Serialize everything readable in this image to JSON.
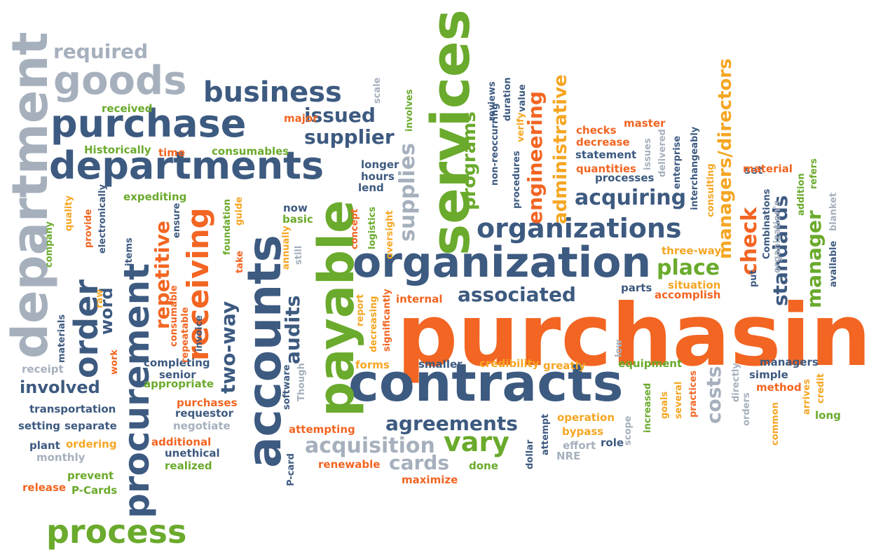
{
  "palette": {
    "navy": "#3d5a80",
    "orange": "#f26522",
    "green": "#6aaa2c",
    "gold": "#f5a623",
    "gray": "#a6b0bd"
  },
  "words": [
    {
      "text": "purchasing",
      "color": "orange",
      "size": 122,
      "dir": "h"
    },
    {
      "text": "contracts",
      "color": "navy",
      "size": 74,
      "dir": "h"
    },
    {
      "text": "organization",
      "color": "navy",
      "size": 60,
      "dir": "h"
    },
    {
      "text": "services",
      "color": "green",
      "size": 76,
      "dir": "v"
    },
    {
      "text": "payable",
      "color": "green",
      "size": 70,
      "dir": "v"
    },
    {
      "text": "accounts",
      "color": "navy",
      "size": 66,
      "dir": "v"
    },
    {
      "text": "department",
      "color": "gray",
      "size": 70,
      "dir": "v"
    },
    {
      "text": "procurement",
      "color": "navy",
      "size": 50,
      "dir": "v"
    },
    {
      "text": "departments",
      "color": "navy",
      "size": 54,
      "dir": "h"
    },
    {
      "text": "purchase",
      "color": "navy",
      "size": 54,
      "dir": "h"
    },
    {
      "text": "goods",
      "color": "gray",
      "size": 56,
      "dir": "h"
    },
    {
      "text": "business",
      "color": "navy",
      "size": 40,
      "dir": "h"
    },
    {
      "text": "process",
      "color": "green",
      "size": 46,
      "dir": "h"
    },
    {
      "text": "organizations",
      "color": "navy",
      "size": 38,
      "dir": "h"
    },
    {
      "text": "required",
      "color": "gray",
      "size": 28,
      "dir": "h"
    },
    {
      "text": "issued",
      "color": "navy",
      "size": 28,
      "dir": "h"
    },
    {
      "text": "supplier",
      "color": "navy",
      "size": 28,
      "dir": "h"
    },
    {
      "text": "order",
      "color": "navy",
      "size": 46,
      "dir": "v"
    },
    {
      "text": "receiving",
      "color": "orange",
      "size": 42,
      "dir": "v"
    },
    {
      "text": "repetitive",
      "color": "orange",
      "size": 28,
      "dir": "v"
    },
    {
      "text": "two-way",
      "color": "navy",
      "size": 28,
      "dir": "v"
    },
    {
      "text": "audits",
      "color": "navy",
      "size": 28,
      "dir": "v"
    },
    {
      "text": "supplies",
      "color": "gray",
      "size": 30,
      "dir": "v"
    },
    {
      "text": "programs",
      "color": "green",
      "size": 26,
      "dir": "v"
    },
    {
      "text": "engineering",
      "color": "orange",
      "size": 28,
      "dir": "v"
    },
    {
      "text": "administrative",
      "color": "gold",
      "size": 26,
      "dir": "v"
    },
    {
      "text": "managers/directors",
      "color": "gold",
      "size": 26,
      "dir": "v"
    },
    {
      "text": "check",
      "color": "orange",
      "size": 30,
      "dir": "v"
    },
    {
      "text": "standards",
      "color": "navy",
      "size": 28,
      "dir": "v"
    },
    {
      "text": "manager",
      "color": "green",
      "size": 28,
      "dir": "v"
    },
    {
      "text": "costs",
      "color": "gray",
      "size": 28,
      "dir": "v"
    },
    {
      "text": "word",
      "color": "navy",
      "size": 24,
      "dir": "v"
    },
    {
      "text": "acquiring",
      "color": "navy",
      "size": 30,
      "dir": "h"
    },
    {
      "text": "place",
      "color": "green",
      "size": 30,
      "dir": "h"
    },
    {
      "text": "associated",
      "color": "navy",
      "size": 28,
      "dir": "h"
    },
    {
      "text": "agreements",
      "color": "navy",
      "size": 28,
      "dir": "h"
    },
    {
      "text": "acquisition",
      "color": "gray",
      "size": 30,
      "dir": "h"
    },
    {
      "text": "vary",
      "color": "green",
      "size": 38,
      "dir": "h"
    },
    {
      "text": "cards",
      "color": "gray",
      "size": 28,
      "dir": "h"
    },
    {
      "text": "involved",
      "color": "navy",
      "size": 24,
      "dir": "h"
    },
    {
      "text": "received",
      "color": "green",
      "size": 15,
      "dir": "h"
    },
    {
      "text": "Historically",
      "color": "green",
      "size": 15,
      "dir": "h"
    },
    {
      "text": "time",
      "color": "orange",
      "size": 15,
      "dir": "h"
    },
    {
      "text": "consumables",
      "color": "green",
      "size": 15,
      "dir": "h"
    },
    {
      "text": "major",
      "color": "orange",
      "size": 15,
      "dir": "h"
    },
    {
      "text": "expediting",
      "color": "green",
      "size": 15,
      "dir": "h"
    },
    {
      "text": "longer",
      "color": "navy",
      "size": 15,
      "dir": "h"
    },
    {
      "text": "hours",
      "color": "navy",
      "size": 15,
      "dir": "h"
    },
    {
      "text": "lend",
      "color": "navy",
      "size": 15,
      "dir": "h"
    },
    {
      "text": "now",
      "color": "navy",
      "size": 15,
      "dir": "h"
    },
    {
      "text": "basic",
      "color": "green",
      "size": 15,
      "dir": "h"
    },
    {
      "text": "checks",
      "color": "orange",
      "size": 15,
      "dir": "h"
    },
    {
      "text": "master",
      "color": "orange",
      "size": 15,
      "dir": "h"
    },
    {
      "text": "decrease",
      "color": "orange",
      "size": 15,
      "dir": "h"
    },
    {
      "text": "statement",
      "color": "navy",
      "size": 15,
      "dir": "h"
    },
    {
      "text": "quantities",
      "color": "orange",
      "size": 15,
      "dir": "h"
    },
    {
      "text": "processes",
      "color": "navy",
      "size": 15,
      "dir": "h"
    },
    {
      "text": "set",
      "color": "navy",
      "size": 15,
      "dir": "h"
    },
    {
      "text": "material",
      "color": "orange",
      "size": 15,
      "dir": "h"
    },
    {
      "text": "three-way",
      "color": "gold",
      "size": 15,
      "dir": "h"
    },
    {
      "text": "parts",
      "color": "navy",
      "size": 15,
      "dir": "h"
    },
    {
      "text": "situation",
      "color": "gold",
      "size": 15,
      "dir": "h"
    },
    {
      "text": "accomplish",
      "color": "orange",
      "size": 15,
      "dir": "h"
    },
    {
      "text": "internal",
      "color": "orange",
      "size": 15,
      "dir": "h"
    },
    {
      "text": "receipt",
      "color": "gray",
      "size": 15,
      "dir": "h"
    },
    {
      "text": "completing",
      "color": "navy",
      "size": 15,
      "dir": "h"
    },
    {
      "text": "senior",
      "color": "navy",
      "size": 15,
      "dir": "h"
    },
    {
      "text": "appropriate",
      "color": "green",
      "size": 15,
      "dir": "h"
    },
    {
      "text": "transportation",
      "color": "navy",
      "size": 15,
      "dir": "h"
    },
    {
      "text": "purchases",
      "color": "orange",
      "size": 15,
      "dir": "h"
    },
    {
      "text": "requestor",
      "color": "navy",
      "size": 15,
      "dir": "h"
    },
    {
      "text": "setting",
      "color": "navy",
      "size": 15,
      "dir": "h"
    },
    {
      "text": "separate",
      "color": "navy",
      "size": 15,
      "dir": "h"
    },
    {
      "text": "negotiate",
      "color": "gray",
      "size": 15,
      "dir": "h"
    },
    {
      "text": "plant",
      "color": "navy",
      "size": 15,
      "dir": "h"
    },
    {
      "text": "ordering",
      "color": "gold",
      "size": 15,
      "dir": "h"
    },
    {
      "text": "additional",
      "color": "orange",
      "size": 15,
      "dir": "h"
    },
    {
      "text": "monthly",
      "color": "gray",
      "size": 15,
      "dir": "h"
    },
    {
      "text": "unethical",
      "color": "navy",
      "size": 15,
      "dir": "h"
    },
    {
      "text": "prevent",
      "color": "green",
      "size": 15,
      "dir": "h"
    },
    {
      "text": "realized",
      "color": "green",
      "size": 15,
      "dir": "h"
    },
    {
      "text": "release",
      "color": "orange",
      "size": 15,
      "dir": "h"
    },
    {
      "text": "P-Cards",
      "color": "green",
      "size": 15,
      "dir": "h"
    },
    {
      "text": "forms",
      "color": "gold",
      "size": 15,
      "dir": "h"
    },
    {
      "text": "smaller",
      "color": "navy",
      "size": 15,
      "dir": "h"
    },
    {
      "text": "credibility",
      "color": "gold",
      "size": 15,
      "dir": "h"
    },
    {
      "text": "greatly",
      "color": "gold",
      "size": 15,
      "dir": "h"
    },
    {
      "text": "equipment",
      "color": "green",
      "size": 15,
      "dir": "h"
    },
    {
      "text": "managers",
      "color": "navy",
      "size": 15,
      "dir": "h"
    },
    {
      "text": "simple",
      "color": "navy",
      "size": 15,
      "dir": "h"
    },
    {
      "text": "method",
      "color": "orange",
      "size": 15,
      "dir": "h"
    },
    {
      "text": "long",
      "color": "green",
      "size": 15,
      "dir": "h"
    },
    {
      "text": "operation",
      "color": "gold",
      "size": 15,
      "dir": "h"
    },
    {
      "text": "bypass",
      "color": "gold",
      "size": 15,
      "dir": "h"
    },
    {
      "text": "effort",
      "color": "gray",
      "size": 15,
      "dir": "h"
    },
    {
      "text": "role",
      "color": "navy",
      "size": 15,
      "dir": "h"
    },
    {
      "text": "NRE",
      "color": "gray",
      "size": 15,
      "dir": "h"
    },
    {
      "text": "attempting",
      "color": "orange",
      "size": 15,
      "dir": "h"
    },
    {
      "text": "renewable",
      "color": "orange",
      "size": 15,
      "dir": "h"
    },
    {
      "text": "done",
      "color": "green",
      "size": 15,
      "dir": "h"
    },
    {
      "text": "maximize",
      "color": "orange",
      "size": 15,
      "dir": "h"
    },
    {
      "text": "scale",
      "color": "gray",
      "size": 13,
      "dir": "v"
    },
    {
      "text": "involves",
      "color": "green",
      "size": 13,
      "dir": "v"
    },
    {
      "text": "non-reoccurring",
      "color": "navy",
      "size": 13,
      "dir": "v"
    },
    {
      "text": "reviews",
      "color": "navy",
      "size": 13,
      "dir": "v"
    },
    {
      "text": "duration",
      "color": "navy",
      "size": 13,
      "dir": "v"
    },
    {
      "text": "procedures",
      "color": "navy",
      "size": 13,
      "dir": "v"
    },
    {
      "text": "verify",
      "color": "gold",
      "size": 13,
      "dir": "v"
    },
    {
      "text": "value",
      "color": "navy",
      "size": 13,
      "dir": "v"
    },
    {
      "text": "issues",
      "color": "gray",
      "size": 13,
      "dir": "v"
    },
    {
      "text": "delivered",
      "color": "gray",
      "size": 13,
      "dir": "v"
    },
    {
      "text": "enterprise",
      "color": "navy",
      "size": 13,
      "dir": "v"
    },
    {
      "text": "interchangeably",
      "color": "navy",
      "size": 13,
      "dir": "v"
    },
    {
      "text": "consulting",
      "color": "gold",
      "size": 13,
      "dir": "v"
    },
    {
      "text": "addition",
      "color": "green",
      "size": 13,
      "dir": "v"
    },
    {
      "text": "refers",
      "color": "green",
      "size": 13,
      "dir": "v"
    },
    {
      "text": "blanket",
      "color": "gray",
      "size": 13,
      "dir": "v"
    },
    {
      "text": "available",
      "color": "navy",
      "size": 13,
      "dir": "v"
    },
    {
      "text": "Combinations",
      "color": "navy",
      "size": 13,
      "dir": "v"
    },
    {
      "text": "organization's",
      "color": "gray",
      "size": 13,
      "dir": "v"
    },
    {
      "text": "put",
      "color": "navy",
      "size": 13,
      "dir": "v"
    },
    {
      "text": "company",
      "color": "green",
      "size": 13,
      "dir": "v"
    },
    {
      "text": "quality",
      "color": "gold",
      "size": 13,
      "dir": "v"
    },
    {
      "text": "provide",
      "color": "orange",
      "size": 13,
      "dir": "v"
    },
    {
      "text": "electronically",
      "color": "navy",
      "size": 13,
      "dir": "v"
    },
    {
      "text": "items",
      "color": "navy",
      "size": 13,
      "dir": "v"
    },
    {
      "text": "raw",
      "color": "gold",
      "size": 13,
      "dir": "v"
    },
    {
      "text": "materials",
      "color": "navy",
      "size": 13,
      "dir": "v"
    },
    {
      "text": "work",
      "color": "orange",
      "size": 13,
      "dir": "v"
    },
    {
      "text": "ensure",
      "color": "navy",
      "size": 13,
      "dir": "v"
    },
    {
      "text": "consumable",
      "color": "orange",
      "size": 13,
      "dir": "v"
    },
    {
      "text": "repeatable",
      "color": "orange",
      "size": 13,
      "dir": "v"
    },
    {
      "text": "invoice",
      "color": "navy",
      "size": 13,
      "dir": "v"
    },
    {
      "text": "foundation",
      "color": "green",
      "size": 13,
      "dir": "v"
    },
    {
      "text": "guide",
      "color": "gold",
      "size": 13,
      "dir": "v"
    },
    {
      "text": "take",
      "color": "orange",
      "size": 13,
      "dir": "v"
    },
    {
      "text": "annually",
      "color": "gold",
      "size": 13,
      "dir": "v"
    },
    {
      "text": "still",
      "color": "gray",
      "size": 13,
      "dir": "v"
    },
    {
      "text": "concept",
      "color": "orange",
      "size": 13,
      "dir": "v"
    },
    {
      "text": "logistics",
      "color": "green",
      "size": 13,
      "dir": "v"
    },
    {
      "text": "oversight",
      "color": "gold",
      "size": 13,
      "dir": "v"
    },
    {
      "text": "report",
      "color": "gold",
      "size": 13,
      "dir": "v"
    },
    {
      "text": "decreasing",
      "color": "gold",
      "size": 13,
      "dir": "v"
    },
    {
      "text": "significantly",
      "color": "orange",
      "size": 13,
      "dir": "v"
    },
    {
      "text": "Though",
      "color": "gray",
      "size": 13,
      "dir": "v"
    },
    {
      "text": "software",
      "color": "navy",
      "size": 13,
      "dir": "v"
    },
    {
      "text": "P-card",
      "color": "navy",
      "size": 13,
      "dir": "v"
    },
    {
      "text": "dollar",
      "color": "navy",
      "size": 13,
      "dir": "v"
    },
    {
      "text": "attempt",
      "color": "navy",
      "size": 13,
      "dir": "v"
    },
    {
      "text": "scope",
      "color": "gray",
      "size": 13,
      "dir": "v"
    },
    {
      "text": "low",
      "color": "gray",
      "size": 13,
      "dir": "v"
    },
    {
      "text": "increased",
      "color": "green",
      "size": 13,
      "dir": "v"
    },
    {
      "text": "goals",
      "color": "gold",
      "size": 13,
      "dir": "v"
    },
    {
      "text": "several",
      "color": "gold",
      "size": 13,
      "dir": "v"
    },
    {
      "text": "practices",
      "color": "orange",
      "size": 13,
      "dir": "v"
    },
    {
      "text": "directly",
      "color": "gray",
      "size": 13,
      "dir": "v"
    },
    {
      "text": "orders",
      "color": "gray",
      "size": 13,
      "dir": "v"
    },
    {
      "text": "common",
      "color": "gold",
      "size": 13,
      "dir": "v"
    },
    {
      "text": "arrives",
      "color": "gold",
      "size": 13,
      "dir": "v"
    },
    {
      "text": "credit",
      "color": "gold",
      "size": 13,
      "dir": "v"
    }
  ]
}
